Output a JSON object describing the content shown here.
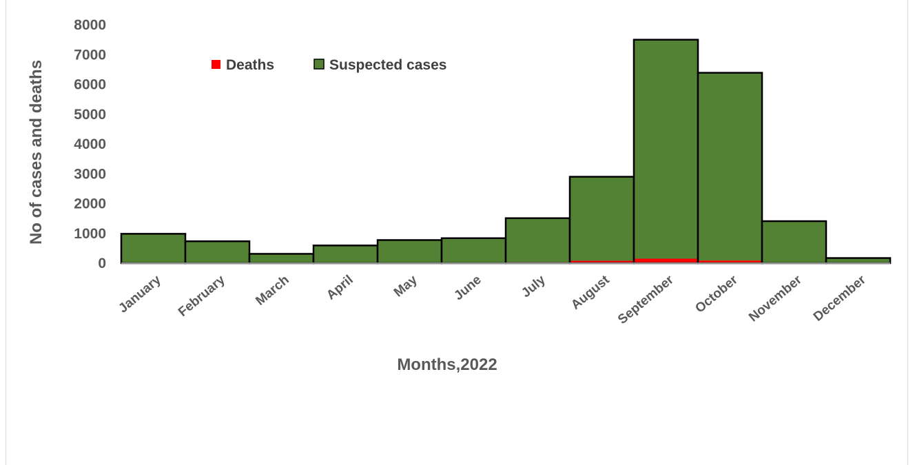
{
  "chart_data": {
    "type": "bar",
    "stacked": true,
    "title": "",
    "xlabel": "Months,2022",
    "ylabel": "No of cases and deaths",
    "ylim": [
      0,
      8000
    ],
    "yticks": [
      0,
      1000,
      2000,
      3000,
      4000,
      5000,
      6000,
      7000,
      8000
    ],
    "grid": false,
    "legend_position": "top-left, inside plot",
    "categories": [
      "January",
      "February",
      "March",
      "April",
      "May",
      "June",
      "July",
      "August",
      "September",
      "October",
      "November",
      "December"
    ],
    "series": [
      {
        "name": "Deaths",
        "color": "#ff0000",
        "values": [
          5,
          5,
          3,
          4,
          5,
          8,
          30,
          80,
          150,
          90,
          20,
          2
        ]
      },
      {
        "name": "Suspected cases",
        "color": "#548235",
        "values": [
          980,
          730,
          310,
          590,
          770,
          830,
          1480,
          2820,
          7350,
          6300,
          1390,
          170
        ]
      }
    ]
  }
}
